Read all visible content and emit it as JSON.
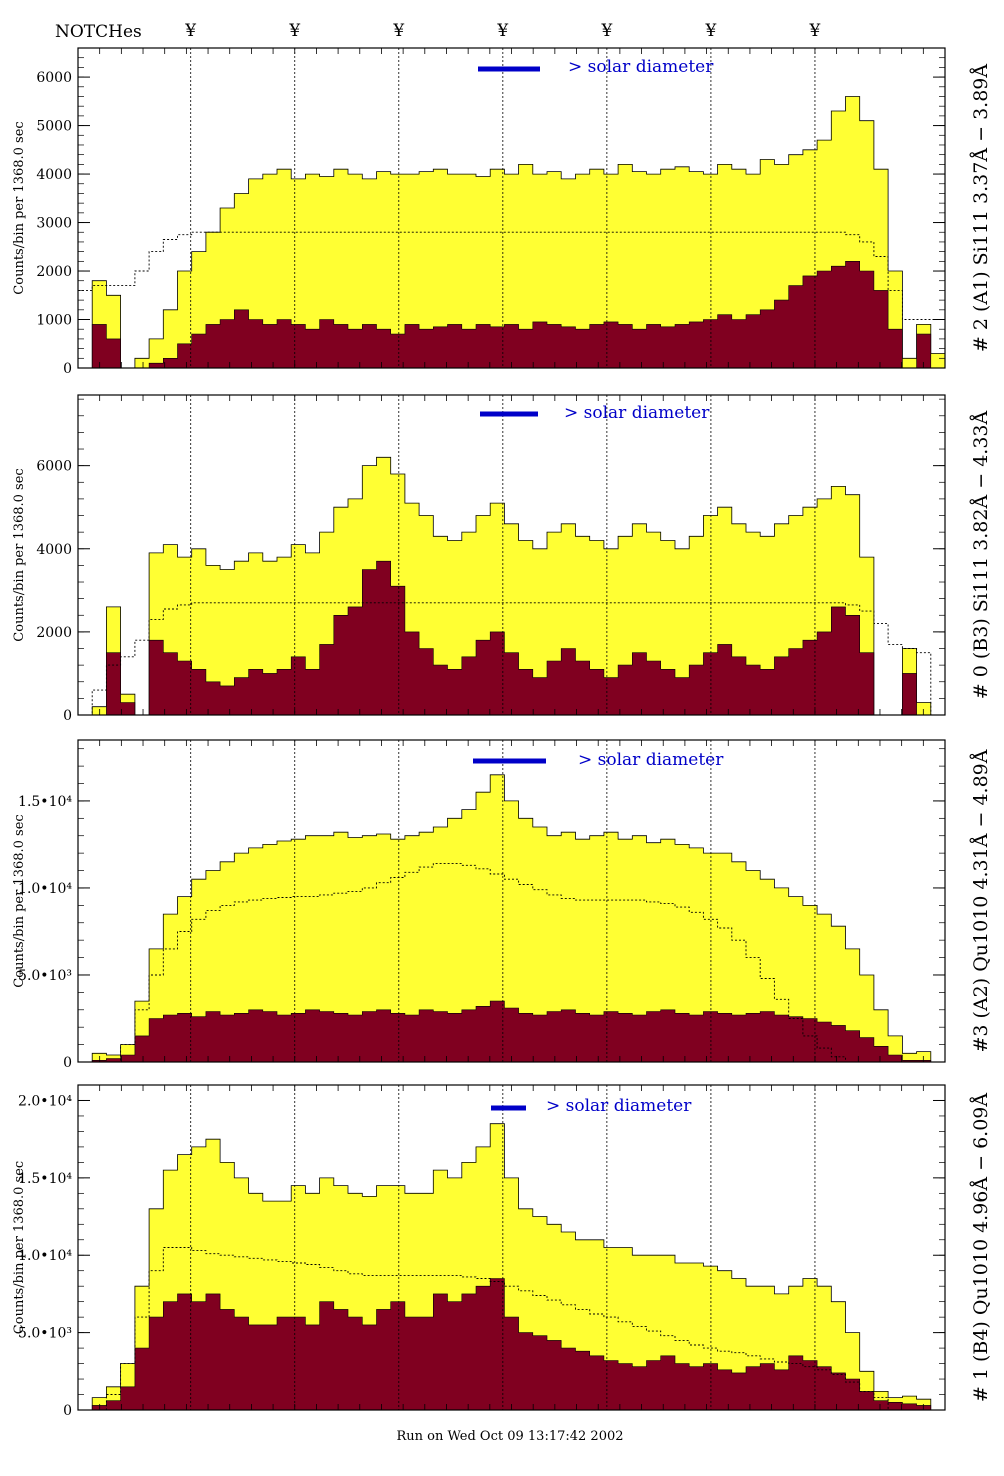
{
  "header": {
    "notches_label": "NOTCHes",
    "notch_marker": "¥"
  },
  "footer": {
    "run_text": "Run on Wed Oct 09 13:17:42 2002"
  },
  "colors": {
    "background": "#ffffff",
    "total": "#ffff33",
    "lower": "#800020",
    "annotation": "#0000c8",
    "frame": "#000000"
  },
  "chart_data": [
    {
      "type": "area",
      "ylabel": "Counts/bin per   1368.0 sec",
      "right_label": "# 2 (A1) Si111  3.37Å − 3.89Å",
      "solar_label": "> solar diameter",
      "ylim": [
        0,
        6600
      ],
      "yticks": [
        {
          "v": 0,
          "label": "0"
        },
        {
          "v": 1000,
          "label": "1000"
        },
        {
          "v": 2000,
          "label": "2000"
        },
        {
          "v": 3000,
          "label": "3000"
        },
        {
          "v": 4000,
          "label": "4000"
        },
        {
          "v": 5000,
          "label": "5000"
        },
        {
          "v": 6000,
          "label": "6000"
        }
      ],
      "notches": [
        0.13,
        0.25,
        0.37,
        0.49,
        0.61,
        0.73,
        0.85
      ],
      "series": [
        {
          "values": [
            0,
            1800,
            1500,
            0,
            200,
            600,
            1200,
            2000,
            2400,
            2800,
            3300,
            3600,
            3900,
            4000,
            4100,
            3900,
            4000,
            3950,
            4100,
            4000,
            3900,
            4050,
            4000,
            4000,
            4050,
            4100,
            4000,
            4000,
            3950,
            4100,
            4000,
            4200,
            4000,
            4050,
            3900,
            4000,
            4100,
            4000,
            4200,
            4050,
            4000,
            4100,
            4150,
            4050,
            4000,
            4200,
            4100,
            4000,
            4300,
            4200,
            4400,
            4500,
            4700,
            5300,
            5600,
            5100,
            4100,
            2000,
            200,
            900,
            300
          ]
        },
        {
          "values": [
            0,
            900,
            600,
            0,
            0,
            100,
            200,
            500,
            700,
            900,
            1000,
            1200,
            1000,
            900,
            1000,
            900,
            800,
            1000,
            900,
            800,
            900,
            800,
            700,
            900,
            800,
            850,
            900,
            800,
            900,
            850,
            900,
            800,
            950,
            900,
            850,
            800,
            900,
            950,
            900,
            800,
            900,
            850,
            900,
            950,
            1000,
            1100,
            1000,
            1100,
            1200,
            1400,
            1700,
            1900,
            2000,
            2100,
            2200,
            2000,
            1600,
            800,
            0,
            700,
            0
          ]
        },
        {
          "values": [
            1600,
            1700,
            1700,
            1700,
            2000,
            2400,
            2650,
            2750,
            2800,
            2800,
            2800,
            2800,
            2800,
            2800,
            2800,
            2800,
            2800,
            2800,
            2800,
            2800,
            2800,
            2800,
            2800,
            2800,
            2800,
            2800,
            2800,
            2800,
            2800,
            2800,
            2800,
            2800,
            2800,
            2800,
            2800,
            2800,
            2800,
            2800,
            2800,
            2800,
            2800,
            2800,
            2800,
            2800,
            2800,
            2800,
            2800,
            2800,
            2800,
            2800,
            2800,
            2800,
            2800,
            2800,
            2750,
            2600,
            2300,
            1600,
            1000,
            1000,
            1000
          ]
        }
      ]
    },
    {
      "type": "area",
      "ylabel": "Counts/bin per   1368.0 sec",
      "right_label": "# 0 (B3) Si111  3.82Å − 4.33Å",
      "solar_label": "> solar diameter",
      "ylim": [
        0,
        7700
      ],
      "yticks": [
        {
          "v": 0,
          "label": "0"
        },
        {
          "v": 2000,
          "label": "2000"
        },
        {
          "v": 4000,
          "label": "4000"
        },
        {
          "v": 6000,
          "label": "6000"
        }
      ],
      "notches": [
        0.13,
        0.25,
        0.37,
        0.49,
        0.61,
        0.73,
        0.85
      ],
      "series": [
        {
          "values": [
            0,
            200,
            2600,
            500,
            0,
            3900,
            4100,
            3800,
            4000,
            3600,
            3500,
            3700,
            3900,
            3700,
            3800,
            4100,
            3900,
            4400,
            5000,
            5200,
            6000,
            6200,
            5800,
            5100,
            4800,
            4300,
            4200,
            4400,
            4800,
            5100,
            4600,
            4200,
            4000,
            4400,
            4600,
            4300,
            4200,
            4000,
            4300,
            4600,
            4400,
            4200,
            4000,
            4300,
            4800,
            5000,
            4600,
            4400,
            4300,
            4600,
            4800,
            5000,
            5200,
            5500,
            5300,
            3800,
            0,
            0,
            1600,
            300,
            0
          ]
        },
        {
          "values": [
            0,
            0,
            1500,
            300,
            0,
            1800,
            1500,
            1300,
            1100,
            800,
            700,
            900,
            1100,
            1000,
            1100,
            1400,
            1100,
            1700,
            2400,
            2600,
            3500,
            3700,
            3100,
            2000,
            1600,
            1200,
            1100,
            1400,
            1800,
            2000,
            1500,
            1100,
            900,
            1300,
            1600,
            1300,
            1100,
            900,
            1200,
            1500,
            1300,
            1100,
            900,
            1200,
            1500,
            1700,
            1400,
            1200,
            1100,
            1400,
            1600,
            1800,
            2000,
            2600,
            2400,
            1500,
            0,
            0,
            1000,
            0,
            0
          ]
        },
        {
          "values": [
            0,
            600,
            1200,
            1400,
            1800,
            2300,
            2550,
            2650,
            2700,
            2700,
            2700,
            2700,
            2700,
            2700,
            2700,
            2700,
            2700,
            2700,
            2700,
            2700,
            2700,
            2700,
            2700,
            2700,
            2700,
            2700,
            2700,
            2700,
            2700,
            2700,
            2700,
            2700,
            2700,
            2700,
            2700,
            2700,
            2700,
            2700,
            2700,
            2700,
            2700,
            2700,
            2700,
            2700,
            2700,
            2700,
            2700,
            2700,
            2700,
            2700,
            2700,
            2700,
            2700,
            2700,
            2650,
            2500,
            2200,
            1700,
            1600,
            1500,
            0
          ]
        }
      ]
    },
    {
      "type": "area",
      "ylabel": "Counts/bin per   1368.0 sec",
      "right_label": "#3 (A2) Qu1010  4.31Å − 4.89Å",
      "solar_label": "> solar diameter",
      "ylim": [
        0,
        18500
      ],
      "yticks": [
        {
          "v": 0,
          "label": "0"
        },
        {
          "v": 5000,
          "label": "5.0•10³"
        },
        {
          "v": 10000,
          "label": "1.0•10⁴"
        },
        {
          "v": 15000,
          "label": "1.5•10⁴"
        }
      ],
      "notches": [
        0.13,
        0.25,
        0.37,
        0.49,
        0.61,
        0.73,
        0.85
      ],
      "series": [
        {
          "values": [
            0,
            500,
            400,
            1000,
            3500,
            6500,
            8500,
            9500,
            10500,
            11000,
            11500,
            12000,
            12300,
            12500,
            12700,
            12800,
            13000,
            13000,
            13200,
            12900,
            13000,
            13100,
            12800,
            13000,
            13200,
            13500,
            14000,
            14500,
            15500,
            16500,
            15000,
            14000,
            13500,
            13000,
            13200,
            12800,
            13000,
            13200,
            12800,
            13000,
            12600,
            12800,
            12500,
            12300,
            12000,
            12000,
            11500,
            11000,
            10500,
            10000,
            9500,
            9000,
            8500,
            7800,
            6500,
            5000,
            3000,
            1500,
            500,
            600,
            0
          ]
        },
        {
          "values": [
            0,
            100,
            200,
            400,
            1500,
            2500,
            2700,
            2800,
            2600,
            2900,
            2700,
            2800,
            3000,
            2900,
            2700,
            2800,
            3000,
            2900,
            2800,
            2700,
            2900,
            3000,
            2800,
            2700,
            3000,
            2900,
            2800,
            3000,
            3200,
            3500,
            3100,
            2800,
            2700,
            2900,
            3000,
            2800,
            2700,
            2900,
            2800,
            2700,
            2900,
            3000,
            2800,
            2700,
            2900,
            2800,
            2700,
            2800,
            2900,
            2700,
            2600,
            2500,
            2300,
            2100,
            1800,
            1400,
            900,
            400,
            100,
            100,
            0
          ]
        },
        {
          "values": [
            0,
            0,
            0,
            1000,
            3000,
            5000,
            6500,
            7500,
            8200,
            8700,
            9000,
            9200,
            9300,
            9400,
            9450,
            9500,
            9500,
            9600,
            9700,
            9800,
            10000,
            10300,
            10600,
            10900,
            11200,
            11400,
            11400,
            11300,
            11100,
            10800,
            10500,
            10200,
            9900,
            9600,
            9400,
            9300,
            9300,
            9300,
            9300,
            9300,
            9200,
            9100,
            8900,
            8600,
            8200,
            7700,
            7000,
            6000,
            4800,
            3600,
            2500,
            1500,
            800,
            300,
            0,
            0,
            0,
            0,
            0,
            0,
            0
          ]
        }
      ]
    },
    {
      "type": "area",
      "ylabel": "Counts/bin per   1368.0 sec",
      "right_label": "# 1 (B4) Qu1010 4.96Å − 6.09Å",
      "solar_label": "> solar diameter",
      "ylim": [
        0,
        21000
      ],
      "yticks": [
        {
          "v": 0,
          "label": "0"
        },
        {
          "v": 5000,
          "label": "5.0•10³"
        },
        {
          "v": 10000,
          "label": "1.0•10⁴"
        },
        {
          "v": 15000,
          "label": "1.5•10⁴"
        },
        {
          "v": 20000,
          "label": "2.0•10⁴"
        }
      ],
      "notches": [
        0.13,
        0.25,
        0.37,
        0.49,
        0.61,
        0.73,
        0.85
      ],
      "series": [
        {
          "values": [
            0,
            800,
            1500,
            3000,
            8000,
            13000,
            15500,
            16500,
            17000,
            17500,
            16000,
            15000,
            14000,
            13500,
            13500,
            14500,
            14000,
            15000,
            14500,
            14000,
            13800,
            14500,
            14500,
            14000,
            14000,
            15500,
            15000,
            16000,
            17000,
            18500,
            15000,
            13000,
            12500,
            12000,
            11500,
            11000,
            11000,
            10500,
            10500,
            10000,
            10000,
            10000,
            9500,
            9500,
            9300,
            9000,
            8500,
            8000,
            8000,
            7500,
            8000,
            8500,
            8000,
            7000,
            5000,
            2500,
            1200,
            800,
            900,
            700,
            0
          ]
        },
        {
          "values": [
            0,
            300,
            600,
            1500,
            4000,
            6000,
            7000,
            7500,
            7000,
            7500,
            6500,
            6000,
            5500,
            5500,
            6000,
            6000,
            5500,
            7000,
            6500,
            6000,
            5500,
            6500,
            7000,
            6000,
            6000,
            7500,
            7000,
            7500,
            8000,
            8500,
            6000,
            5000,
            4800,
            4500,
            4000,
            3800,
            3500,
            3200,
            3000,
            2800,
            3200,
            3500,
            3000,
            2800,
            3000,
            2600,
            2400,
            2800,
            3000,
            2600,
            3500,
            3200,
            2800,
            2400,
            2000,
            1200,
            600,
            500,
            400,
            300,
            0
          ]
        },
        {
          "values": [
            0,
            0,
            1000,
            3000,
            6000,
            9000,
            10500,
            10500,
            10300,
            10100,
            10000,
            9900,
            9800,
            9700,
            9600,
            9500,
            9400,
            9200,
            9000,
            8800,
            8700,
            8700,
            8700,
            8700,
            8700,
            8700,
            8700,
            8600,
            8500,
            8300,
            8000,
            7700,
            7400,
            7100,
            6800,
            6500,
            6200,
            6000,
            5700,
            5400,
            5100,
            4800,
            4500,
            4200,
            4000,
            3800,
            3700,
            3500,
            3300,
            3100,
            3000,
            2800,
            2600,
            2300,
            1800,
            1200,
            800,
            0,
            0,
            0,
            0
          ]
        }
      ]
    }
  ]
}
